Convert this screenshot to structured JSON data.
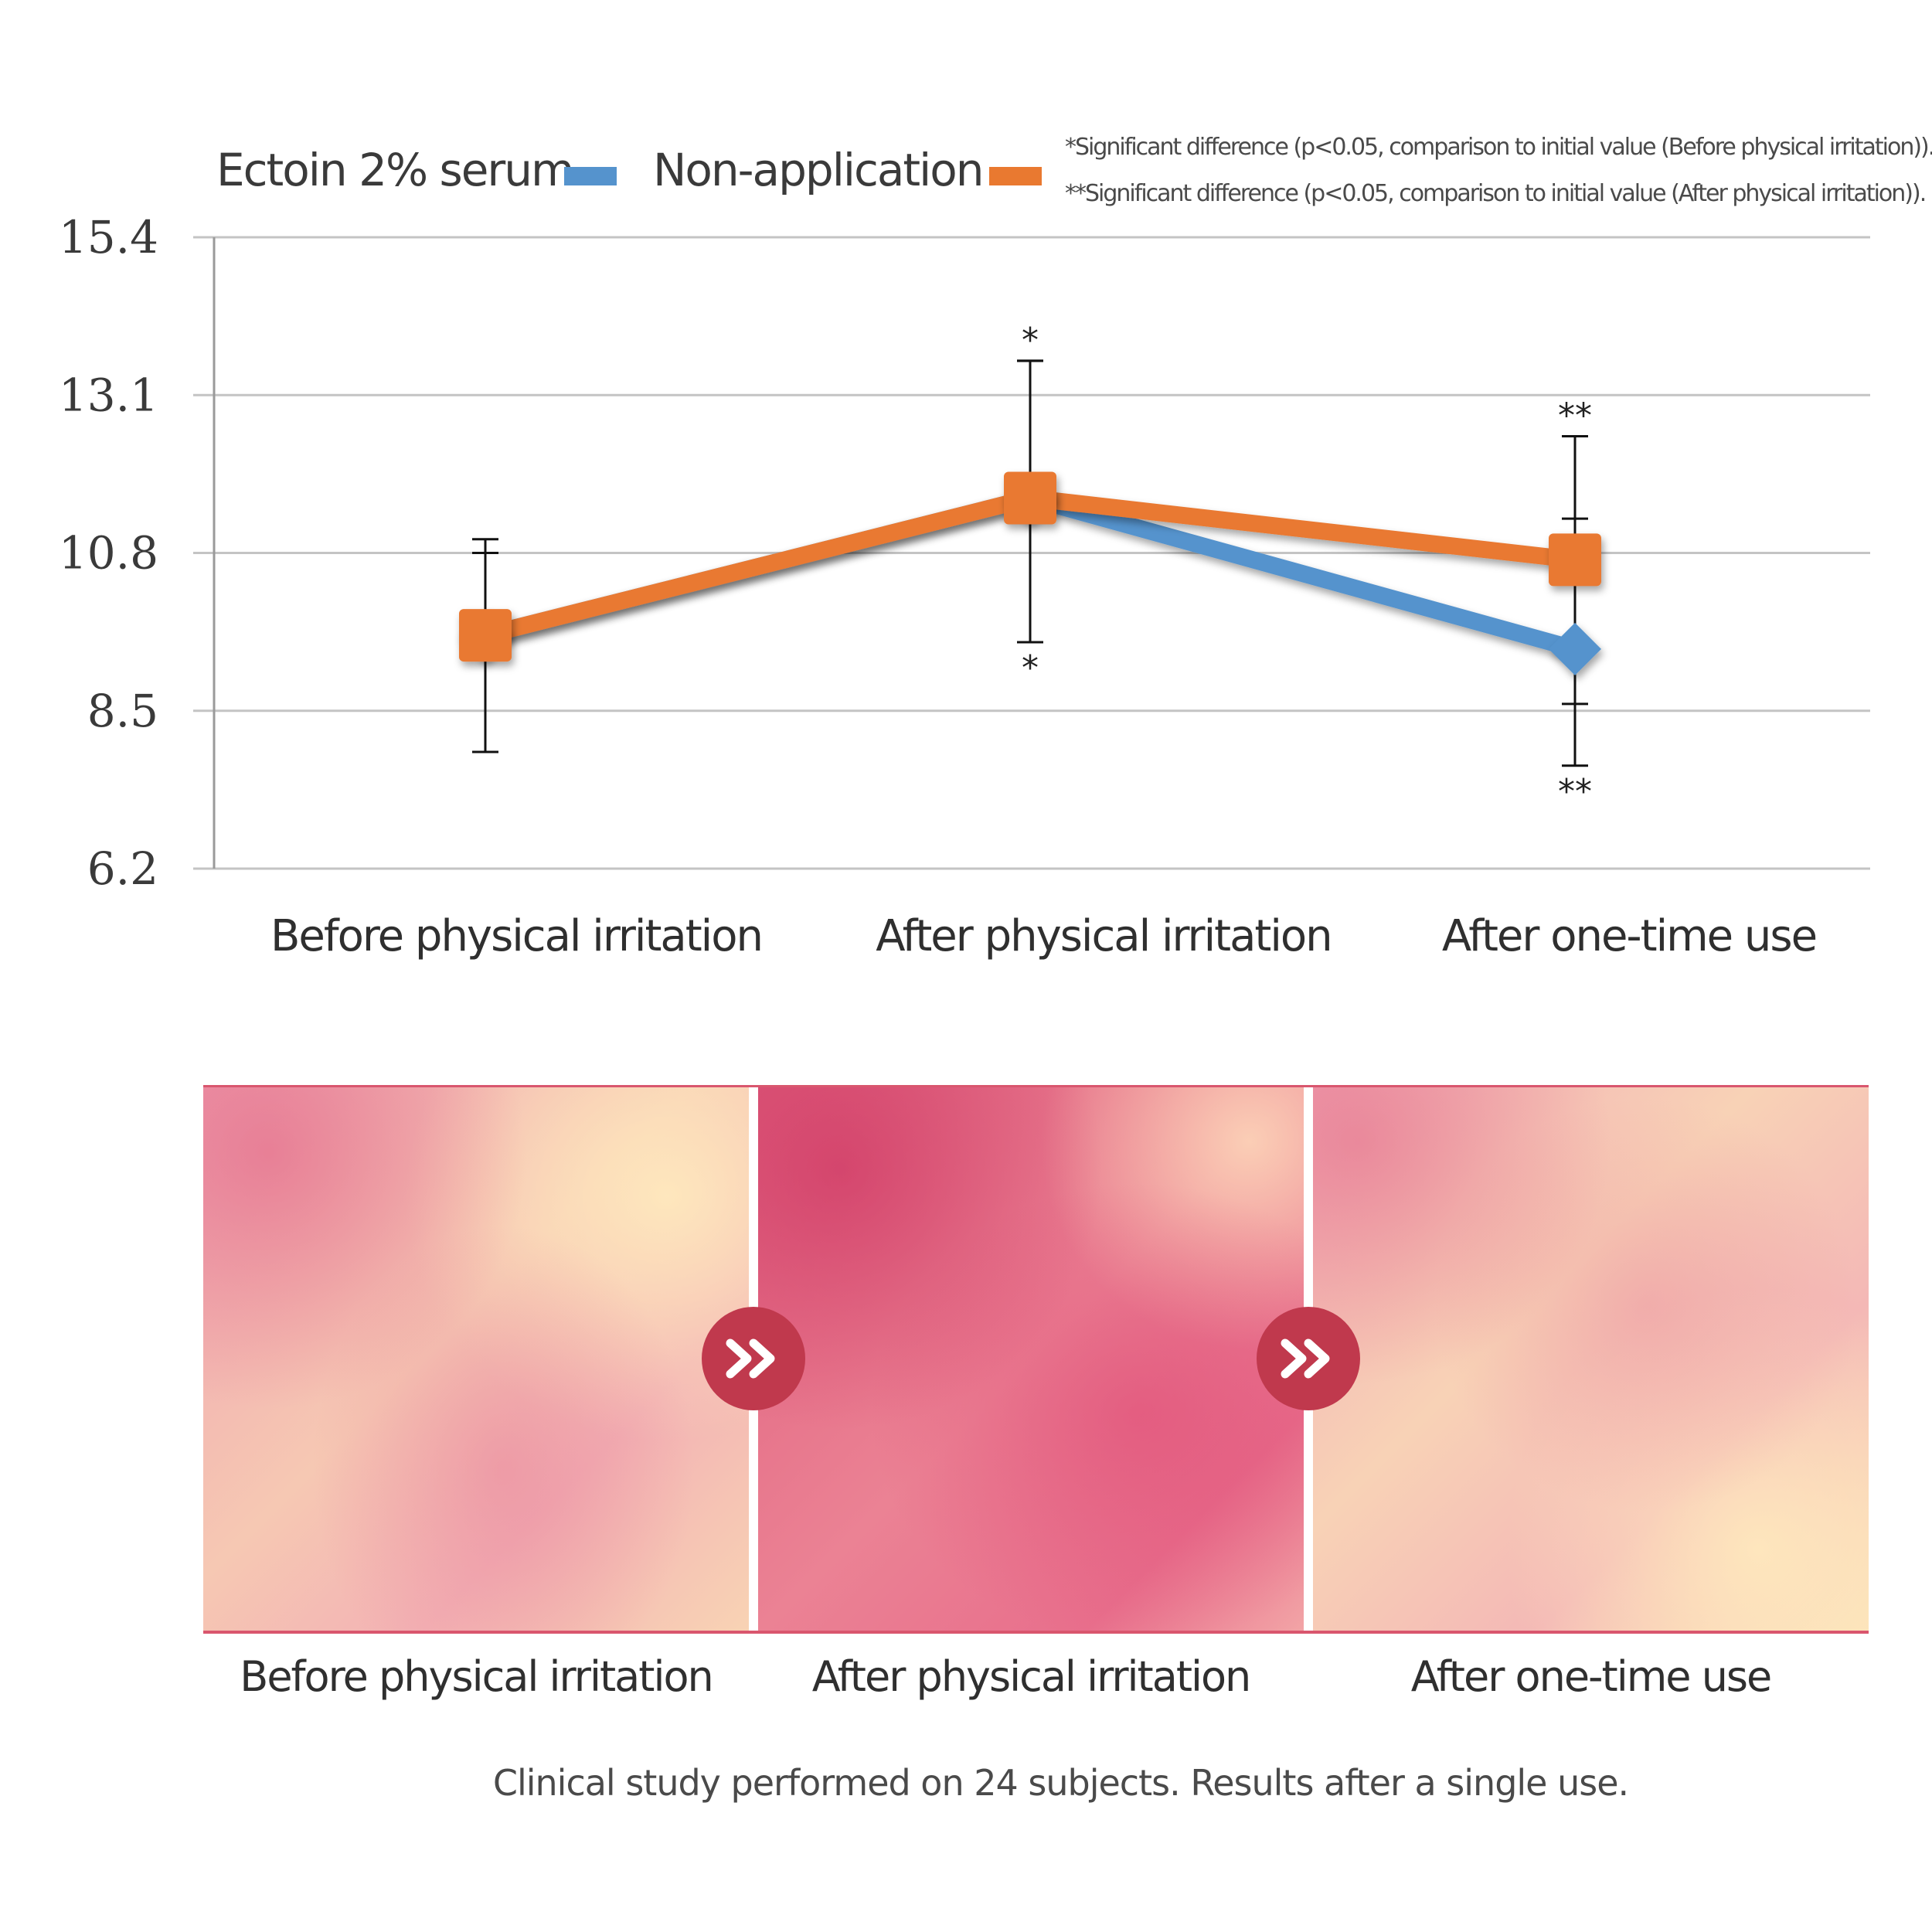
{
  "chart_data": {
    "type": "line",
    "categories": [
      "Before physical irritation",
      "After physical irritation",
      "After one-time use"
    ],
    "series": [
      {
        "name": "Ectoin 2% serum",
        "color": "#5593cd",
        "marker": "diamond",
        "values": [
          9.6,
          11.6,
          9.4
        ],
        "error_upper": [
          11.0,
          13.6,
          11.3
        ],
        "error_lower": [
          7.9,
          9.5,
          7.7
        ]
      },
      {
        "name": "Non-application",
        "color": "#e97930",
        "marker": "square",
        "values": [
          9.6,
          11.6,
          10.7
        ],
        "error_upper": [
          10.8,
          13.6,
          12.5
        ],
        "error_lower": [
          9.6,
          9.5,
          8.6
        ]
      }
    ],
    "yticks": [
      "15.4",
      "13.1",
      "10.8",
      "8.5",
      "6.2"
    ],
    "ylim": [
      6.2,
      15.4
    ],
    "grid": true,
    "legend_position": "top-left",
    "significance": [
      {
        "category": "After physical irritation",
        "above": "*",
        "below": "*"
      },
      {
        "category": "After one-time use",
        "above": "**",
        "below": "**"
      }
    ],
    "notes": [
      "*Significant difference (p<0.05, comparison to initial value (Before physical irritation)).",
      "**Significant difference (p<0.05, comparison to initial value (After physical irritation))."
    ]
  },
  "photos": {
    "labels": [
      "Before physical irritation",
      "After physical irritation",
      "After one-time use"
    ]
  },
  "footnote": "Clinical study performed on 24 subjects. Results after a single use."
}
